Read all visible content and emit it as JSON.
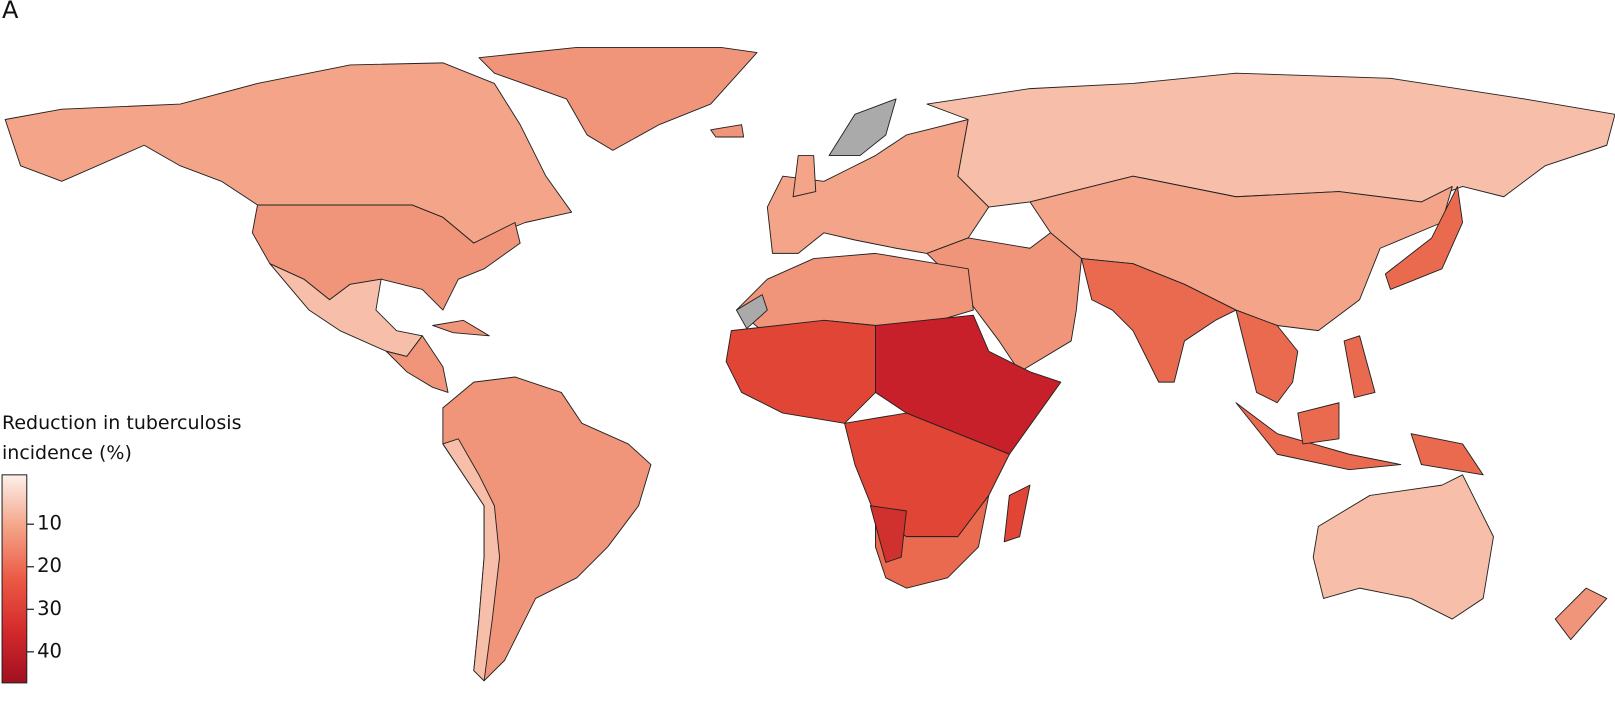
{
  "panel_label": "A",
  "legend": {
    "title": "Reduction in tuberculosis incidence (%)",
    "lim": [
      -1.6,
      47.3
    ],
    "ticks": [
      10,
      20,
      30,
      40
    ]
  }
}
